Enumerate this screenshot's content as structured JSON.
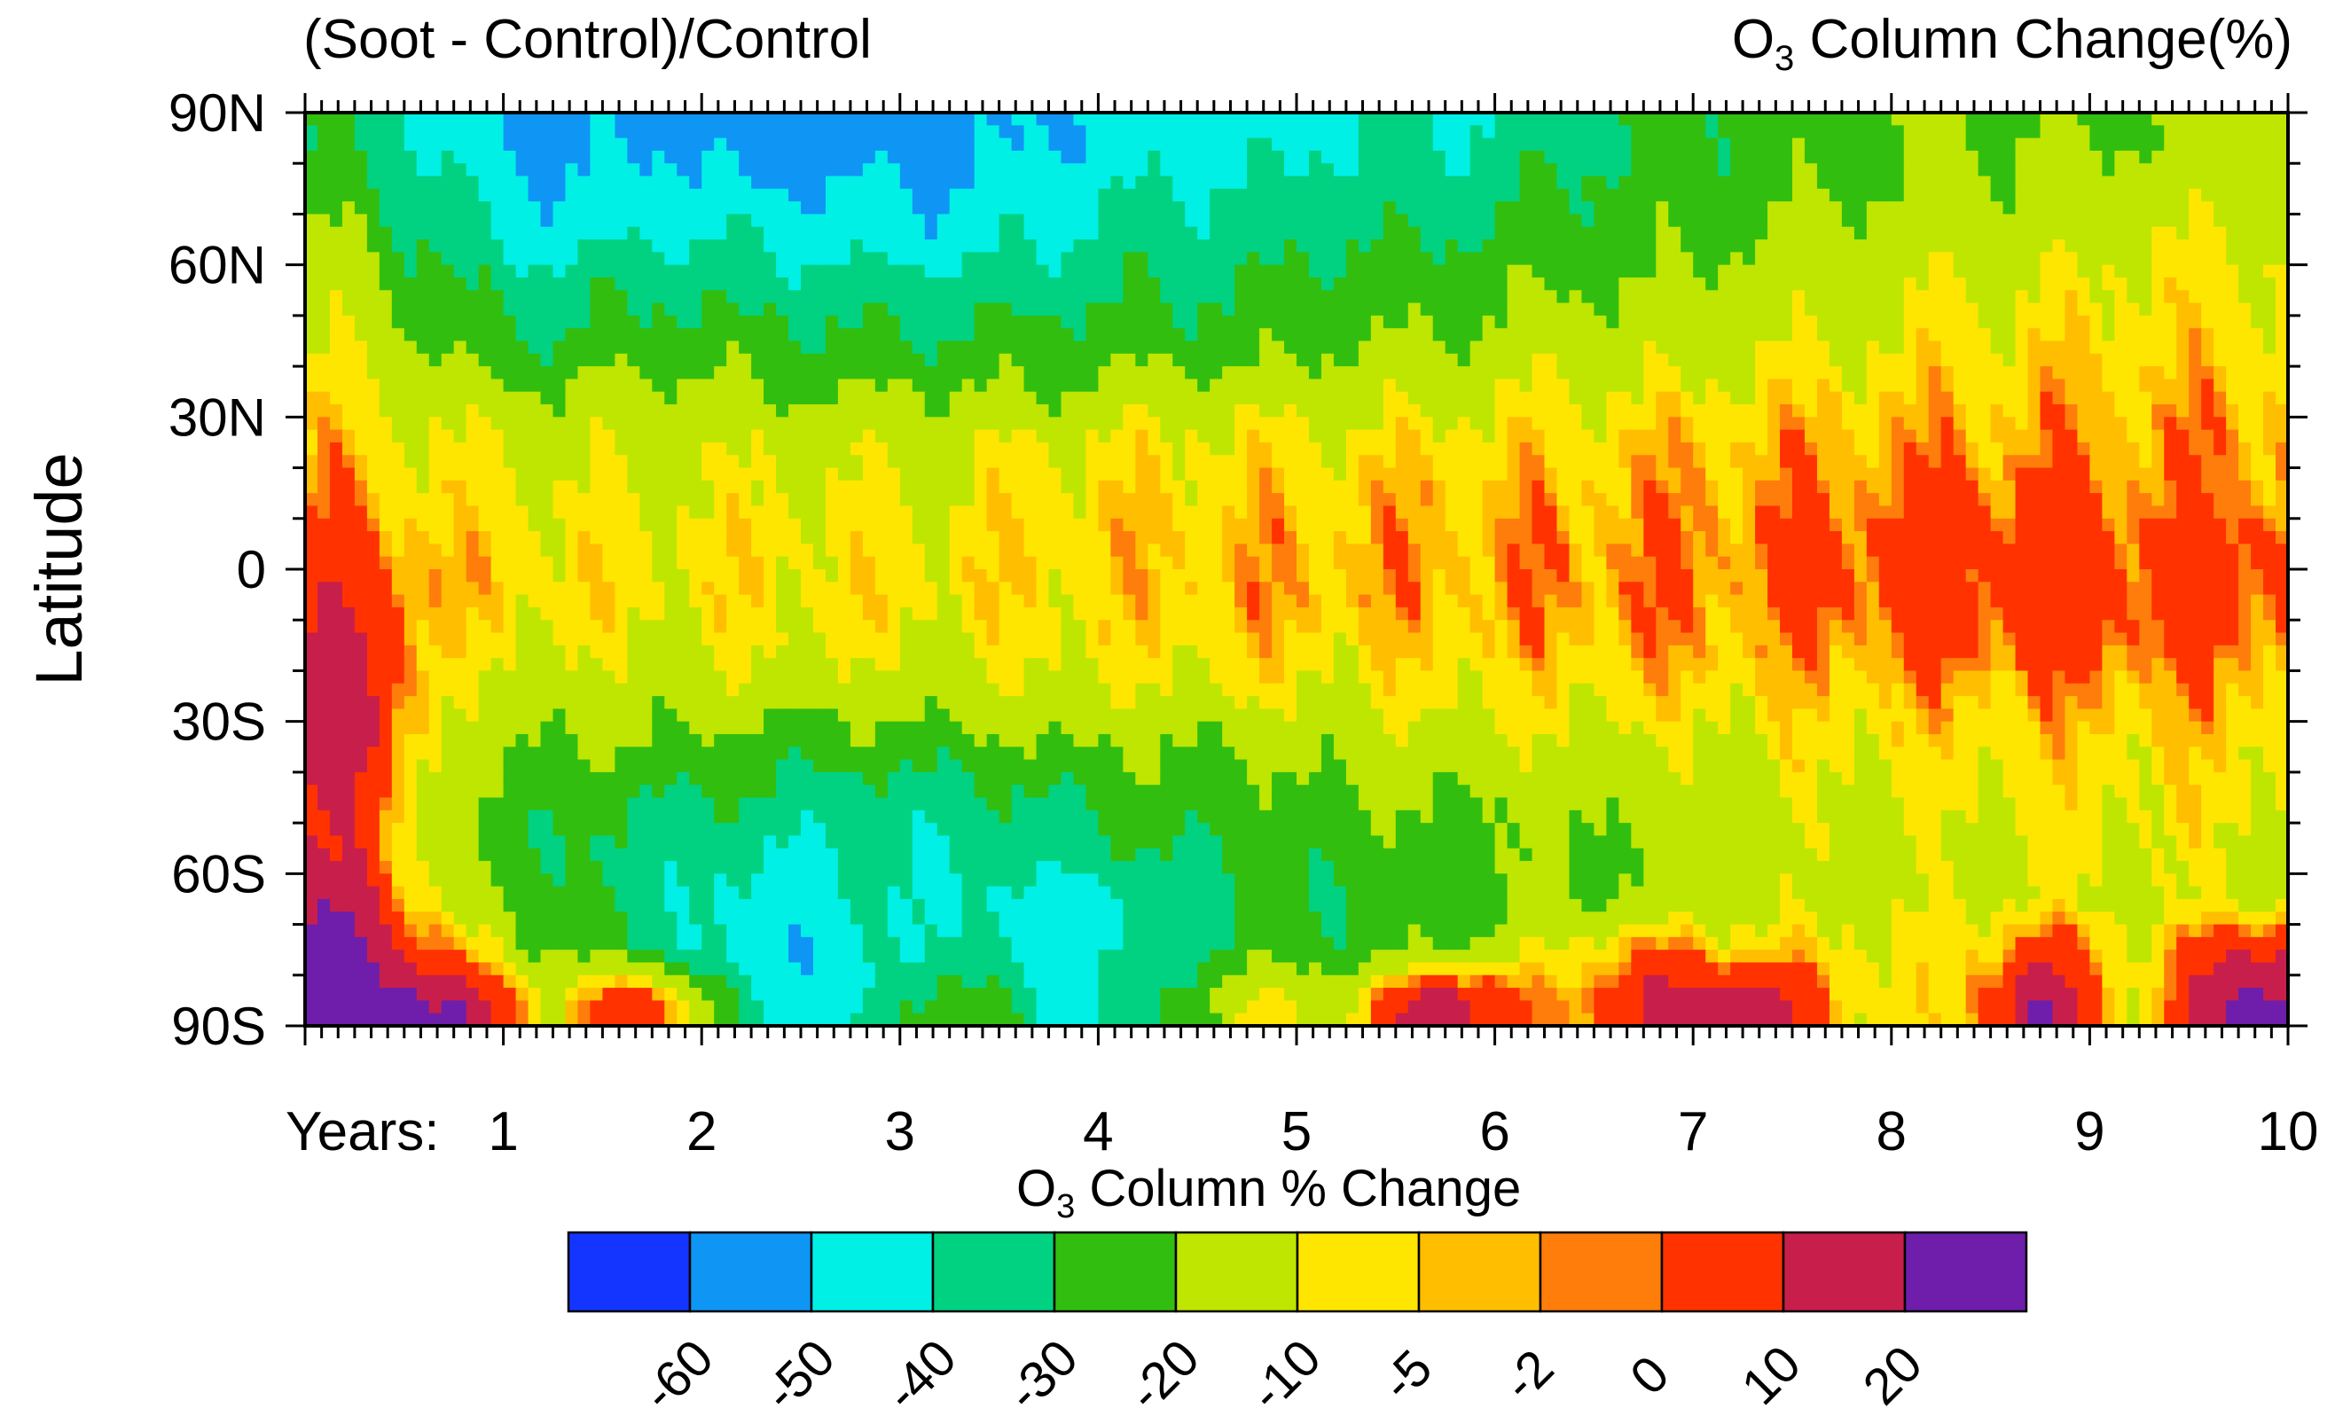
{
  "chart_data": {
    "type": "heatmap",
    "title_left": "(Soot - Control)/Control",
    "title_right": {
      "main": "O",
      "sub": "3",
      "rest": " Column Change(%)"
    },
    "ylabel": "Latitude",
    "xlabel_prefix": "Years:",
    "x_ticks": [
      "1",
      "2",
      "3",
      "4",
      "5",
      "6",
      "7",
      "8",
      "9",
      "10"
    ],
    "x_range": [
      0,
      10
    ],
    "y_ticks": [
      "90N",
      "60N",
      "30N",
      "0",
      "30S",
      "60S",
      "90S"
    ],
    "y_tick_values": [
      90,
      60,
      30,
      0,
      -30,
      -60,
      -90
    ],
    "y_range": [
      -90,
      90
    ],
    "colorbar": {
      "title": {
        "main": "O",
        "sub": "3",
        "rest": " Column % Change"
      },
      "levels": [
        "-60",
        "-50",
        "-40",
        "-30",
        "-20",
        "-10",
        "-5",
        "-2",
        "0",
        "10",
        "20"
      ],
      "colors": [
        "#1435ff",
        "#0f96f5",
        "#00f0e6",
        "#00d282",
        "#32be0f",
        "#bee600",
        "#ffe600",
        "#ffbe00",
        "#ff7d0a",
        "#ff3200",
        "#c81e4b",
        "#6e1eaa"
      ]
    },
    "field_summary": {
      "description_note": "Latitude-time field of ozone column change; values grid approximated from bands",
      "lat_centers": [
        85,
        75,
        65,
        55,
        45,
        35,
        25,
        15,
        5,
        -5,
        -15,
        -25,
        -35,
        -45,
        -55,
        -65,
        -75,
        -85
      ],
      "year_centers": [
        0.25,
        0.75,
        1.25,
        1.75,
        2.25,
        2.75,
        3.25,
        3.75,
        4.25,
        4.75,
        5.25,
        5.75,
        6.25,
        6.75,
        7.25,
        7.75,
        8.25,
        8.75,
        9.25,
        9.75
      ],
      "values": [
        [
          -30,
          -45,
          -55,
          -50,
          -55,
          -55,
          -55,
          -50,
          -45,
          -45,
          -40,
          -40,
          -35,
          -30,
          -25,
          -25,
          -20,
          -20,
          -20,
          -15
        ],
        [
          -25,
          -40,
          -50,
          -45,
          -50,
          -50,
          -50,
          -45,
          -40,
          -40,
          -35,
          -35,
          -30,
          -25,
          -25,
          -20,
          -20,
          -15,
          -15,
          -15
        ],
        [
          -20,
          -35,
          -45,
          -40,
          -40,
          -45,
          -45,
          -40,
          -35,
          -35,
          -30,
          -30,
          -25,
          -25,
          -20,
          -15,
          -15,
          -15,
          -10,
          -10
        ],
        [
          -15,
          -30,
          -35,
          -30,
          -35,
          -35,
          -35,
          -35,
          -30,
          -30,
          -25,
          -25,
          -20,
          -20,
          -15,
          -15,
          -10,
          -10,
          -8,
          -8
        ],
        [
          -12,
          -25,
          -30,
          -25,
          -25,
          -30,
          -30,
          -25,
          -25,
          -25,
          -20,
          -20,
          -15,
          -15,
          -12,
          -10,
          -8,
          -6,
          -6,
          -6
        ],
        [
          -8,
          -15,
          -20,
          -15,
          -20,
          -20,
          -20,
          -20,
          -15,
          -15,
          -15,
          -12,
          -10,
          -10,
          -8,
          -6,
          -5,
          -4,
          -4,
          -4
        ],
        [
          -5,
          -10,
          -12,
          -12,
          -12,
          -12,
          -12,
          -10,
          -8,
          -8,
          -8,
          -7,
          -6,
          -5,
          -4,
          -3,
          -3,
          -2,
          -2,
          -2
        ],
        [
          -2,
          -8,
          -10,
          -10,
          -10,
          -10,
          -10,
          -7,
          -6,
          -5,
          -5,
          -4,
          -4,
          -3,
          -2,
          -1,
          1,
          1,
          -1,
          -1
        ],
        [
          2,
          -5,
          -7,
          -8,
          -7,
          -8,
          -7,
          -6,
          -5,
          -4,
          -3,
          -3,
          -2,
          -1,
          -1,
          2,
          3,
          4,
          2,
          3
        ],
        [
          8,
          -5,
          -7,
          -8,
          -7,
          -8,
          -7,
          -6,
          -5,
          -3,
          -3,
          -3,
          -2,
          -1,
          -1,
          2,
          3,
          4,
          3,
          2
        ],
        [
          12,
          -8,
          -10,
          -10,
          -10,
          -10,
          -10,
          -8,
          -7,
          -6,
          -6,
          -5,
          -4,
          -3,
          -3,
          -2,
          1,
          2,
          1,
          0
        ],
        [
          15,
          -12,
          -15,
          -15,
          -15,
          -15,
          -15,
          -12,
          -12,
          -10,
          -10,
          -8,
          -8,
          -7,
          -6,
          -5,
          -4,
          -3,
          -3,
          -3
        ],
        [
          15,
          -15,
          -20,
          -20,
          -25,
          -25,
          -25,
          -20,
          -20,
          -20,
          -15,
          -15,
          -12,
          -12,
          -10,
          -8,
          -7,
          -6,
          -6,
          -6
        ],
        [
          10,
          -20,
          -25,
          -30,
          -30,
          -35,
          -35,
          -30,
          -25,
          -25,
          -20,
          -20,
          -18,
          -15,
          -12,
          -10,
          -10,
          -8,
          -8,
          -8
        ],
        [
          8,
          -20,
          -30,
          -35,
          -40,
          -40,
          -40,
          -35,
          -30,
          -30,
          -25,
          -25,
          -20,
          -20,
          -15,
          -12,
          -12,
          -10,
          -10,
          -10
        ],
        [
          15,
          -15,
          -25,
          -35,
          -45,
          -40,
          -40,
          -45,
          -40,
          -30,
          -30,
          -25,
          -20,
          -20,
          -15,
          -12,
          -12,
          -10,
          -12,
          -12
        ],
        [
          25,
          -5,
          -20,
          -30,
          -50,
          -45,
          -35,
          -45,
          -40,
          -25,
          -25,
          -20,
          -10,
          0,
          -5,
          -8,
          -10,
          5,
          -10,
          10
        ],
        [
          30,
          20,
          -10,
          10,
          -40,
          -45,
          -20,
          -40,
          -35,
          -10,
          -10,
          20,
          -5,
          10,
          20,
          -5,
          -10,
          20,
          -10,
          25
        ]
      ]
    }
  }
}
